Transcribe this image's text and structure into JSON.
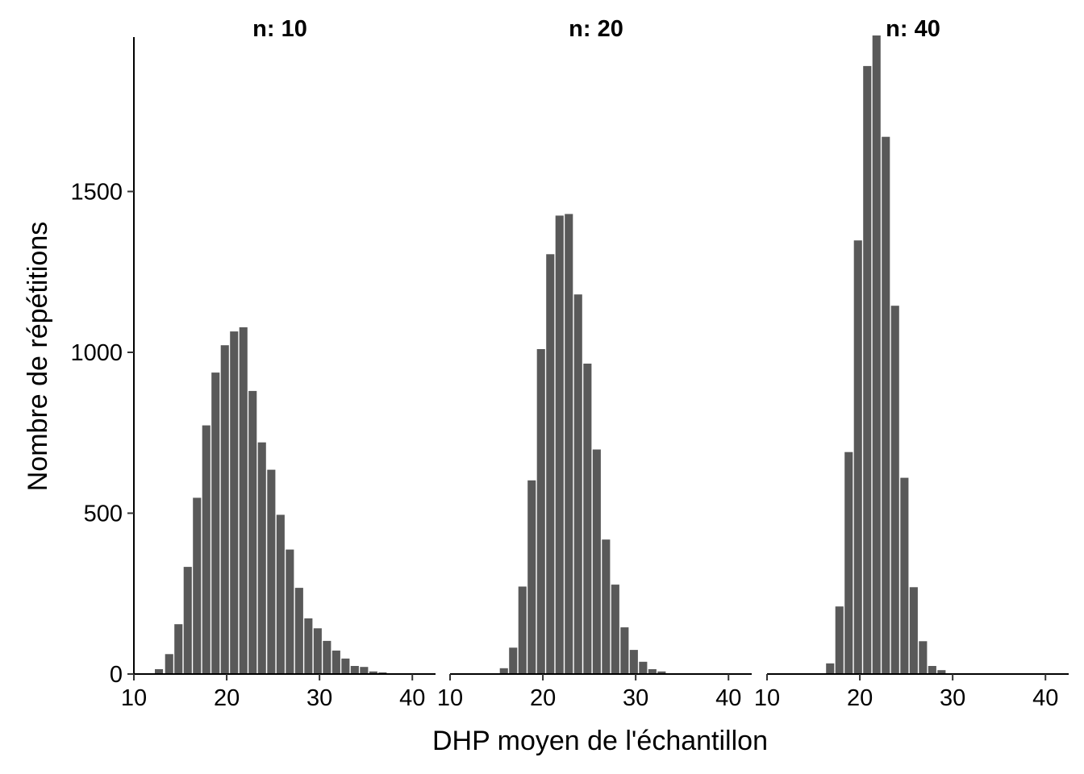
{
  "chart_data": {
    "type": "bar",
    "xlabel": "DHP moyen de l'échantillon",
    "ylabel": "Nombre de répétitions",
    "xlim": [
      10,
      42.5
    ],
    "ylim": [
      0,
      1980
    ],
    "x_ticks": [
      "10",
      "20",
      "30",
      "40"
    ],
    "y_ticks": [
      "0",
      "500",
      "1000",
      "1500"
    ],
    "bar_color": "#595959",
    "grid": false,
    "panels": [
      {
        "title": "n: 10",
        "x": [
          12.7,
          13.8,
          14.8,
          15.8,
          16.8,
          17.8,
          18.8,
          19.8,
          20.8,
          21.8,
          22.8,
          23.8,
          24.8,
          25.8,
          26.8,
          27.8,
          28.8,
          29.8,
          30.8,
          31.8,
          32.8,
          33.8,
          34.8,
          35.8,
          36.8
        ],
        "values": [
          15,
          62,
          155,
          333,
          548,
          773,
          937,
          1022,
          1065,
          1078,
          880,
          720,
          635,
          495,
          387,
          268,
          173,
          142,
          103,
          73,
          48,
          25,
          22,
          8,
          5
        ]
      },
      {
        "title": "n: 20",
        "x": [
          15.8,
          16.8,
          17.8,
          18.8,
          19.8,
          20.8,
          21.8,
          22.8,
          23.8,
          24.8,
          25.8,
          26.8,
          27.8,
          28.8,
          29.8,
          30.8,
          31.8,
          32.8
        ],
        "values": [
          18,
          82,
          272,
          602,
          1010,
          1305,
          1425,
          1430,
          1180,
          965,
          698,
          418,
          278,
          145,
          75,
          38,
          15,
          8
        ]
      },
      {
        "title": "n: 40",
        "x": [
          16.8,
          17.8,
          18.8,
          19.8,
          20.8,
          21.8,
          22.8,
          23.8,
          24.8,
          25.8,
          26.8,
          27.8,
          28.8
        ],
        "values": [
          33,
          210,
          690,
          1348,
          1890,
          1985,
          1670,
          1145,
          610,
          270,
          102,
          25,
          12
        ]
      }
    ]
  }
}
